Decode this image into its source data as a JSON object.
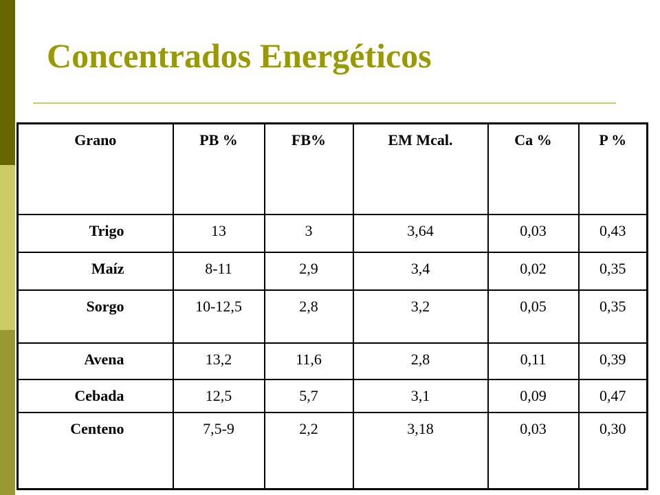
{
  "title": "Concentrados Energéticos",
  "table": {
    "header": [
      "Grano",
      "PB %",
      "FB%",
      "EM Mcal.",
      "Ca %",
      "P %"
    ],
    "rows": [
      [
        "Trigo",
        "13",
        "3",
        "3,64",
        "0,03",
        "0,43"
      ],
      [
        "Maíz",
        "8-11",
        "2,9",
        "3,4",
        "0,02",
        "0,35"
      ],
      [
        "Sorgo",
        "10-12,5",
        "2,8",
        "3,2",
        "0,05",
        "0,35"
      ],
      [
        "Avena",
        "13,2",
        "11,6",
        "2,8",
        "0,11",
        "0,39"
      ],
      [
        "Cebada",
        "12,5",
        "5,7",
        "3,1",
        "0,09",
        "0,47"
      ],
      [
        "Centeno",
        "7,5-9",
        "2,2",
        "3,18",
        "0,03",
        "0,30"
      ]
    ]
  }
}
